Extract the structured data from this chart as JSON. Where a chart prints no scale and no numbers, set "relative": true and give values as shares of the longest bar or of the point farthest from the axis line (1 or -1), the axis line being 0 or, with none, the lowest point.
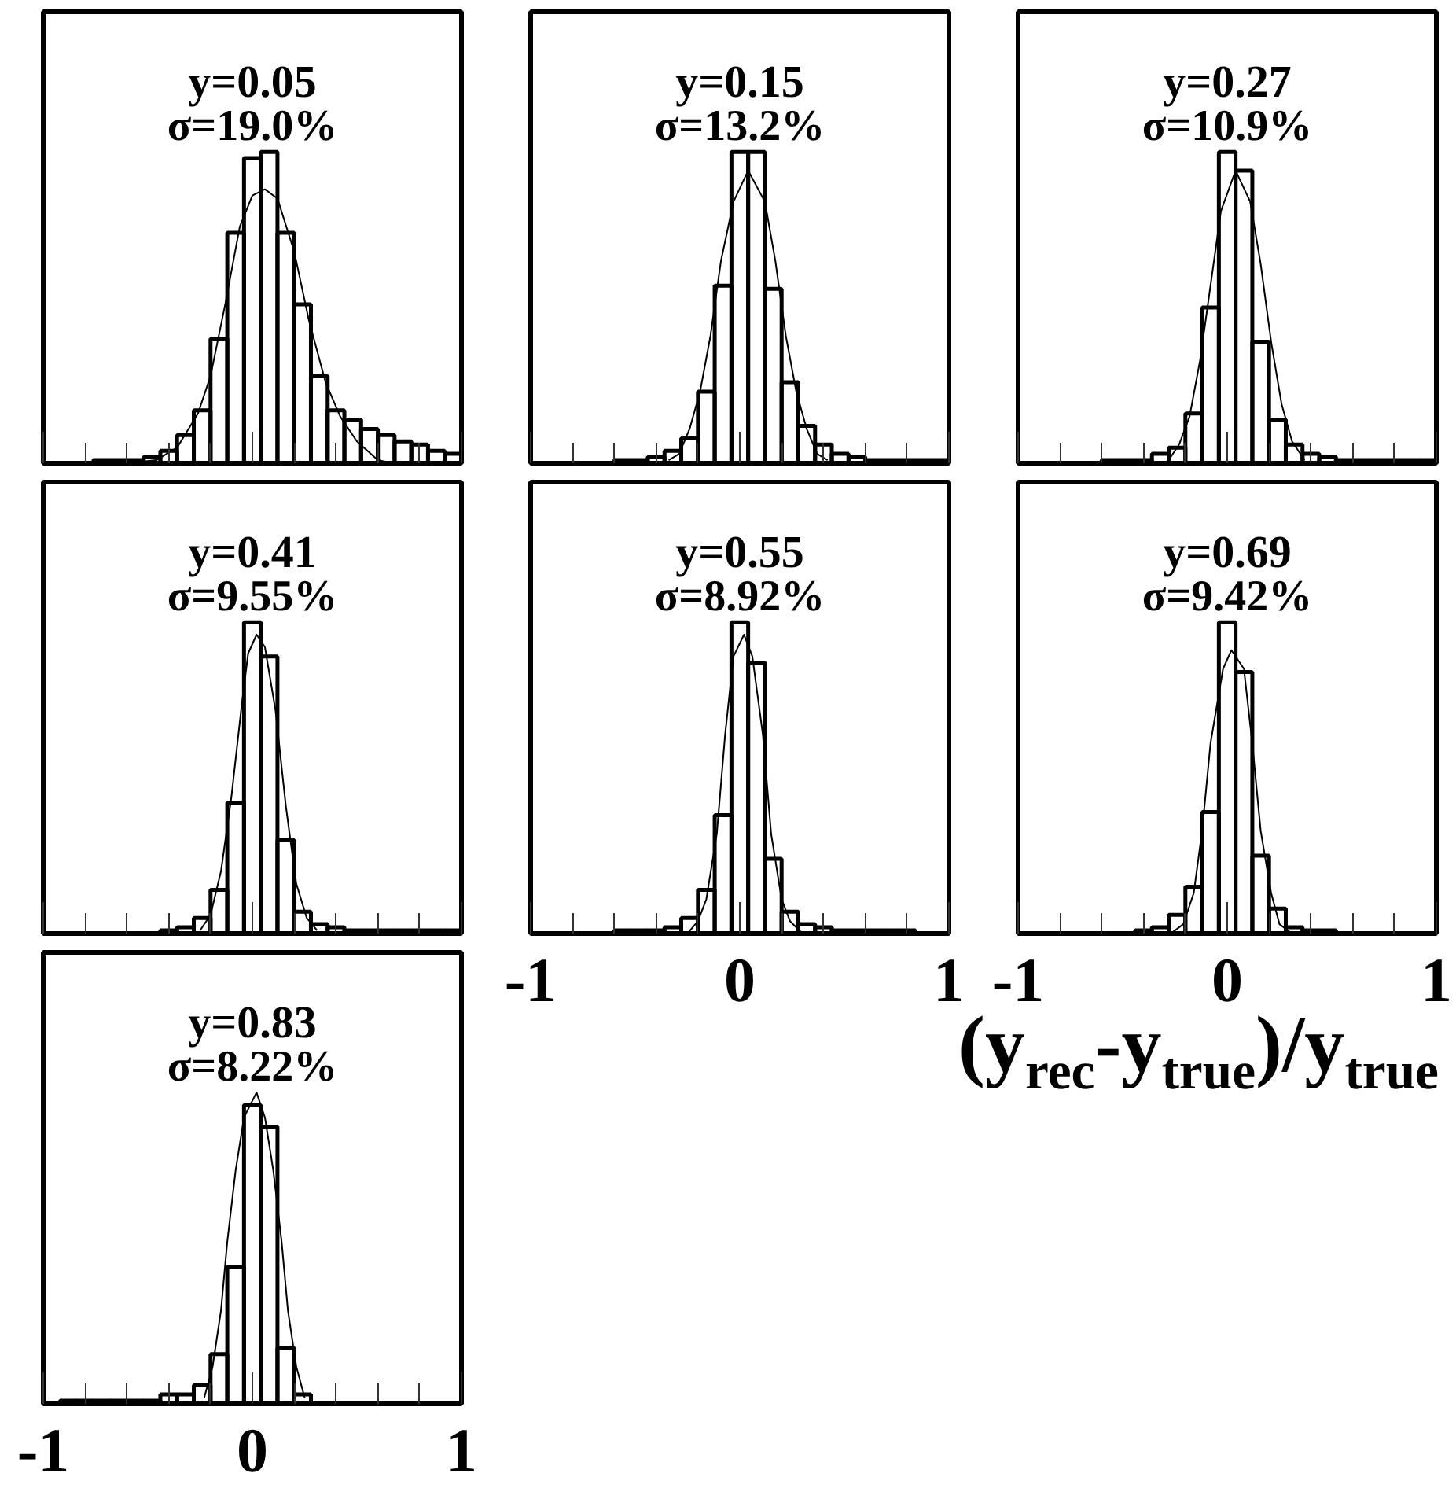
{
  "chart_data": [
    {
      "type": "histogram",
      "title": "y=0.05",
      "subtitle": "σ=19.0%",
      "relative": true,
      "xlim": [
        -1,
        1
      ],
      "xticks": [
        -1,
        {
          "value": -0.8,
          "label": null
        },
        {
          "value": -0.6,
          "label": null
        },
        {
          "value": -0.4,
          "label": null
        },
        {
          "value": -0.2,
          "label": null
        },
        0,
        {
          "value": 0.2,
          "label": null
        },
        {
          "value": 0.4,
          "label": null
        },
        {
          "value": 0.6,
          "label": null
        },
        {
          "value": 0.8,
          "label": null
        },
        1
      ],
      "tick_labels": false,
      "bins": [
        -1,
        -0.92,
        -0.84,
        -0.76,
        -0.68,
        -0.6,
        -0.52,
        -0.44,
        -0.36,
        -0.28,
        -0.2,
        -0.12,
        -0.04,
        0.04,
        0.12,
        0.2,
        0.28,
        0.36,
        0.44,
        0.52,
        0.6,
        0.68,
        0.76,
        0.84,
        0.92,
        1
      ],
      "series": [
        {
          "color": "#000000",
          "values": [
            0,
            0,
            0,
            0.01,
            0.01,
            0.01,
            0.02,
            0.04,
            0.09,
            0.17,
            0.4,
            0.74,
            0.98,
            1,
            0.74,
            0.51,
            0.28,
            0.17,
            0.14,
            0.11,
            0.09,
            0.07,
            0.06,
            0.04,
            0.03
          ]
        },
        {
          "type": "line",
          "color": "#000000",
          "x": [
            -0.6,
            -0.46,
            -0.36,
            -0.26,
            -0.2,
            -0.13,
            -0.06,
            0,
            0.06,
            0.12,
            0.2,
            0.27,
            0.35,
            0.42,
            0.5,
            0.6,
            0.67
          ],
          "values": [
            0,
            0.01,
            0.05,
            0.16,
            0.28,
            0.51,
            0.76,
            0.86,
            0.88,
            0.85,
            0.68,
            0.46,
            0.26,
            0.15,
            0.07,
            0.01,
            0
          ]
        }
      ]
    },
    {
      "type": "histogram",
      "title": "y=0.15",
      "subtitle": "σ=13.2%",
      "relative": true,
      "xlim": [
        -1,
        1
      ],
      "xticks": [
        -1,
        {
          "value": -0.8,
          "label": null
        },
        {
          "value": -0.6,
          "label": null
        },
        {
          "value": -0.4,
          "label": null
        },
        {
          "value": -0.2,
          "label": null
        },
        0,
        {
          "value": 0.2,
          "label": null
        },
        {
          "value": 0.4,
          "label": null
        },
        {
          "value": 0.6,
          "label": null
        },
        {
          "value": 0.8,
          "label": null
        },
        1
      ],
      "tick_labels": false,
      "bins": [
        -1,
        -0.92,
        -0.84,
        -0.76,
        -0.68,
        -0.6,
        -0.52,
        -0.44,
        -0.36,
        -0.28,
        -0.2,
        -0.12,
        -0.04,
        0.04,
        0.12,
        0.2,
        0.28,
        0.36,
        0.44,
        0.52,
        0.6,
        0.68,
        0.76,
        0.84,
        0.92,
        1
      ],
      "series": [
        {
          "color": "#000000",
          "values": [
            0,
            0,
            0,
            0,
            0,
            0.01,
            0.01,
            0.02,
            0.04,
            0.08,
            0.23,
            0.57,
            1,
            1,
            0.56,
            0.26,
            0.12,
            0.06,
            0.03,
            0.02,
            0.01,
            0.01,
            0.01,
            0.01,
            0.01
          ]
        },
        {
          "type": "line",
          "color": "#000000",
          "x": [
            -0.34,
            -0.29,
            -0.24,
            -0.19,
            -0.14,
            -0.09,
            -0.03,
            0.04,
            0.12,
            0.17,
            0.22,
            0.27,
            0.32,
            0.37,
            0.42
          ],
          "values": [
            0.01,
            0.03,
            0.11,
            0.23,
            0.41,
            0.65,
            0.84,
            0.94,
            0.84,
            0.65,
            0.41,
            0.23,
            0.11,
            0.03,
            0.01
          ]
        }
      ]
    },
    {
      "type": "histogram",
      "title": "y=0.27",
      "subtitle": "σ=10.9%",
      "relative": true,
      "xlim": [
        -1,
        1
      ],
      "xticks": [
        -1,
        {
          "value": -0.8,
          "label": null
        },
        {
          "value": -0.6,
          "label": null
        },
        {
          "value": -0.4,
          "label": null
        },
        {
          "value": -0.2,
          "label": null
        },
        0,
        {
          "value": 0.2,
          "label": null
        },
        {
          "value": 0.4,
          "label": null
        },
        {
          "value": 0.6,
          "label": null
        },
        {
          "value": 0.8,
          "label": null
        },
        1
      ],
      "tick_labels": false,
      "bins": [
        -1,
        -0.92,
        -0.84,
        -0.76,
        -0.68,
        -0.6,
        -0.52,
        -0.44,
        -0.36,
        -0.28,
        -0.2,
        -0.12,
        -0.04,
        0.04,
        0.12,
        0.2,
        0.28,
        0.36,
        0.44,
        0.52,
        0.6,
        0.68,
        0.76,
        0.84,
        0.92,
        1
      ],
      "series": [
        {
          "color": "#000000",
          "values": [
            0,
            0,
            0,
            0,
            0,
            0.01,
            0.01,
            0.01,
            0.03,
            0.05,
            0.16,
            0.5,
            1,
            0.94,
            0.39,
            0.14,
            0.06,
            0.03,
            0.02,
            0.01,
            0.01,
            0.01,
            0.01,
            0.01,
            0.01
          ]
        },
        {
          "type": "line",
          "color": "#000000",
          "x": [
            -0.28,
            -0.23,
            -0.18,
            -0.13,
            -0.08,
            -0.03,
            0.04,
            0.11,
            0.16,
            0.21,
            0.26,
            0.31,
            0.37
          ],
          "values": [
            0.01,
            0.06,
            0.15,
            0.33,
            0.57,
            0.81,
            0.94,
            0.84,
            0.64,
            0.39,
            0.19,
            0.07,
            0.01
          ]
        }
      ]
    },
    {
      "type": "histogram",
      "title": "y=0.41",
      "subtitle": "σ=9.55%",
      "relative": true,
      "xlim": [
        -1,
        1
      ],
      "xticks": [
        -1,
        {
          "value": -0.8,
          "label": null
        },
        {
          "value": -0.6,
          "label": null
        },
        {
          "value": -0.4,
          "label": null
        },
        {
          "value": -0.2,
          "label": null
        },
        0,
        {
          "value": 0.2,
          "label": null
        },
        {
          "value": 0.4,
          "label": null
        },
        {
          "value": 0.6,
          "label": null
        },
        {
          "value": 0.8,
          "label": null
        },
        1
      ],
      "tick_labels": false,
      "bins": [
        -1,
        -0.92,
        -0.84,
        -0.76,
        -0.68,
        -0.6,
        -0.52,
        -0.44,
        -0.36,
        -0.28,
        -0.2,
        -0.12,
        -0.04,
        0.04,
        0.12,
        0.2,
        0.28,
        0.36,
        0.44,
        0.52,
        0.6,
        0.68,
        0.76,
        0.84,
        0.92,
        1
      ],
      "series": [
        {
          "color": "#000000",
          "values": [
            0,
            0,
            0,
            0,
            0,
            0,
            0,
            0.01,
            0.02,
            0.05,
            0.14,
            0.42,
            1,
            0.89,
            0.3,
            0.07,
            0.03,
            0.02,
            0.01,
            0.01,
            0.01,
            0.01,
            0.01,
            0.01,
            0.01
          ]
        },
        {
          "type": "line",
          "color": "#000000",
          "x": [
            -0.25,
            -0.2,
            -0.15,
            -0.1,
            -0.05,
            -0.02,
            0.02,
            0.06,
            0.11,
            0.16,
            0.21,
            0.26,
            0.31
          ],
          "values": [
            0.01,
            0.06,
            0.2,
            0.44,
            0.74,
            0.9,
            0.96,
            0.92,
            0.72,
            0.41,
            0.16,
            0.05,
            0.01
          ]
        }
      ]
    },
    {
      "type": "histogram",
      "title": "y=0.55",
      "subtitle": "σ=8.92%",
      "relative": true,
      "xlim": [
        -1,
        1
      ],
      "xticks": [
        -1,
        {
          "value": -0.8,
          "label": null
        },
        {
          "value": -0.6,
          "label": null
        },
        {
          "value": -0.4,
          "label": null
        },
        {
          "value": -0.2,
          "label": null
        },
        0,
        {
          "value": 0.2,
          "label": null
        },
        {
          "value": 0.4,
          "label": null
        },
        {
          "value": 0.6,
          "label": null
        },
        {
          "value": 0.8,
          "label": null
        },
        1
      ],
      "tick_labels": "x",
      "bins": [
        -1,
        -0.92,
        -0.84,
        -0.76,
        -0.68,
        -0.6,
        -0.52,
        -0.44,
        -0.36,
        -0.28,
        -0.2,
        -0.12,
        -0.04,
        0.04,
        0.12,
        0.2,
        0.28,
        0.36,
        0.44,
        0.52,
        0.6,
        0.68,
        0.76,
        0.84,
        0.92,
        1
      ],
      "series": [
        {
          "color": "#000000",
          "values": [
            0,
            0,
            0,
            0,
            0,
            0.01,
            0.01,
            0.01,
            0.02,
            0.05,
            0.14,
            0.38,
            1,
            0.87,
            0.24,
            0.07,
            0.03,
            0.02,
            0.01,
            0.01,
            0.01,
            0.01,
            0.01,
            0,
            0
          ]
        },
        {
          "type": "line",
          "color": "#000000",
          "x": [
            -0.25,
            -0.2,
            -0.16,
            -0.11,
            -0.07,
            -0.03,
            0.02,
            0.06,
            0.11,
            0.15,
            0.2,
            0.24,
            0.3
          ],
          "values": [
            0,
            0.04,
            0.11,
            0.32,
            0.64,
            0.89,
            0.96,
            0.89,
            0.64,
            0.32,
            0.11,
            0.04,
            0
          ]
        }
      ]
    },
    {
      "type": "histogram",
      "title": "y=0.69",
      "subtitle": "σ=9.42%",
      "xlabel": "(y$_{rec}$-y$_{true}$)/y$_{true}$",
      "relative": true,
      "xlim": [
        -1,
        1
      ],
      "xticks": [
        -1,
        {
          "value": -0.8,
          "label": null
        },
        {
          "value": -0.6,
          "label": null
        },
        {
          "value": -0.4,
          "label": null
        },
        {
          "value": -0.2,
          "label": null
        },
        0,
        {
          "value": 0.2,
          "label": null
        },
        {
          "value": 0.4,
          "label": null
        },
        {
          "value": 0.6,
          "label": null
        },
        {
          "value": 0.8,
          "label": null
        },
        1
      ],
      "tick_labels": "x",
      "bins": [
        -1,
        -0.92,
        -0.84,
        -0.76,
        -0.68,
        -0.6,
        -0.52,
        -0.44,
        -0.36,
        -0.28,
        -0.2,
        -0.12,
        -0.04,
        0.04,
        0.12,
        0.2,
        0.28,
        0.36,
        0.44,
        0.52,
        0.6,
        0.68,
        0.76,
        0.84,
        0.92,
        1
      ],
      "series": [
        {
          "color": "#000000",
          "values": [
            0,
            0,
            0,
            0,
            0,
            0,
            0,
            0.01,
            0.02,
            0.06,
            0.15,
            0.39,
            1,
            0.84,
            0.25,
            0.08,
            0.02,
            0.01,
            0.01,
            0,
            0,
            0,
            0,
            0,
            0
          ]
        },
        {
          "type": "line",
          "color": "#000000",
          "x": [
            -0.27,
            -0.21,
            -0.16,
            -0.12,
            -0.08,
            -0.02,
            0.02,
            0.08,
            0.12,
            0.16,
            0.21,
            0.25,
            0.31
          ],
          "values": [
            0,
            0.03,
            0.13,
            0.33,
            0.61,
            0.85,
            0.91,
            0.85,
            0.61,
            0.33,
            0.13,
            0.03,
            0
          ]
        }
      ]
    },
    {
      "type": "histogram",
      "title": "y=0.83",
      "subtitle": "σ=8.22%",
      "relative": true,
      "xlim": [
        -1,
        1
      ],
      "xticks": [
        -1,
        {
          "value": -0.8,
          "label": null
        },
        {
          "value": -0.6,
          "label": null
        },
        {
          "value": -0.4,
          "label": null
        },
        {
          "value": -0.2,
          "label": null
        },
        0,
        {
          "value": 0.2,
          "label": null
        },
        {
          "value": 0.4,
          "label": null
        },
        {
          "value": 0.6,
          "label": null
        },
        {
          "value": 0.8,
          "label": null
        },
        1
      ],
      "tick_labels": "x",
      "bins": [
        -1,
        -0.92,
        -0.84,
        -0.76,
        -0.68,
        -0.6,
        -0.52,
        -0.44,
        -0.36,
        -0.28,
        -0.2,
        -0.12,
        -0.04,
        0.04,
        0.12,
        0.2,
        0.28,
        0.36,
        0.44,
        0.52,
        0.6,
        0.68,
        0.76,
        0.84,
        0.92,
        1
      ],
      "series": [
        {
          "color": "#000000",
          "values": [
            0,
            0.01,
            0.01,
            0.01,
            0.01,
            0.01,
            0.01,
            0.03,
            0.03,
            0.06,
            0.16,
            0.44,
            0.96,
            0.89,
            0.18,
            0.03,
            0,
            0,
            0,
            0,
            0,
            0,
            0,
            0,
            0
          ]
        },
        {
          "type": "line",
          "color": "#000000",
          "x": [
            -0.23,
            -0.19,
            -0.15,
            -0.12,
            -0.08,
            -0.04,
            0.02,
            0.06,
            0.1,
            0.14,
            0.17,
            0.21,
            0.25
          ],
          "values": [
            0.02,
            0.12,
            0.3,
            0.52,
            0.75,
            0.92,
            1,
            0.92,
            0.75,
            0.52,
            0.3,
            0.12,
            0.02
          ]
        }
      ]
    }
  ]
}
